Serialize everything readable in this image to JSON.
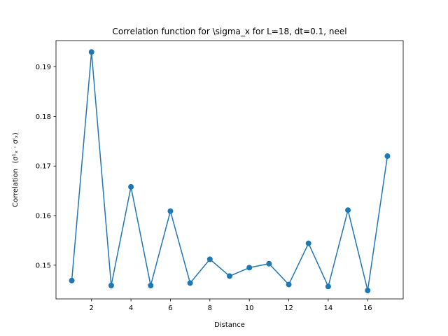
{
  "chart_data": {
    "type": "line",
    "title": "Correlation function for \\sigma_x for L=18, dt=0.1, neel",
    "xlabel": "Distance",
    "ylabel_prefix": "Correlation",
    "ylabel_math": "⟨σ¹ₓ · σⁱₓ⟩",
    "xlim": [
      0.2,
      17.8
    ],
    "ylim": [
      0.1432,
      0.1953
    ],
    "xticks": [
      2,
      4,
      6,
      8,
      10,
      12,
      14,
      16
    ],
    "yticks": [
      0.15,
      0.16,
      0.17,
      0.18,
      0.19
    ],
    "grid": false,
    "series": [
      {
        "color": "#1f77b4",
        "marker": "circle",
        "x": [
          1,
          2,
          3,
          4,
          5,
          6,
          7,
          8,
          9,
          10,
          11,
          12,
          13,
          14,
          15,
          16,
          17
        ],
        "y": [
          0.1469,
          0.193,
          0.1459,
          0.1658,
          0.1459,
          0.1609,
          0.1464,
          0.1512,
          0.1478,
          0.1495,
          0.1503,
          0.1461,
          0.1544,
          0.1457,
          0.1611,
          0.1449,
          0.172
        ]
      }
    ]
  }
}
